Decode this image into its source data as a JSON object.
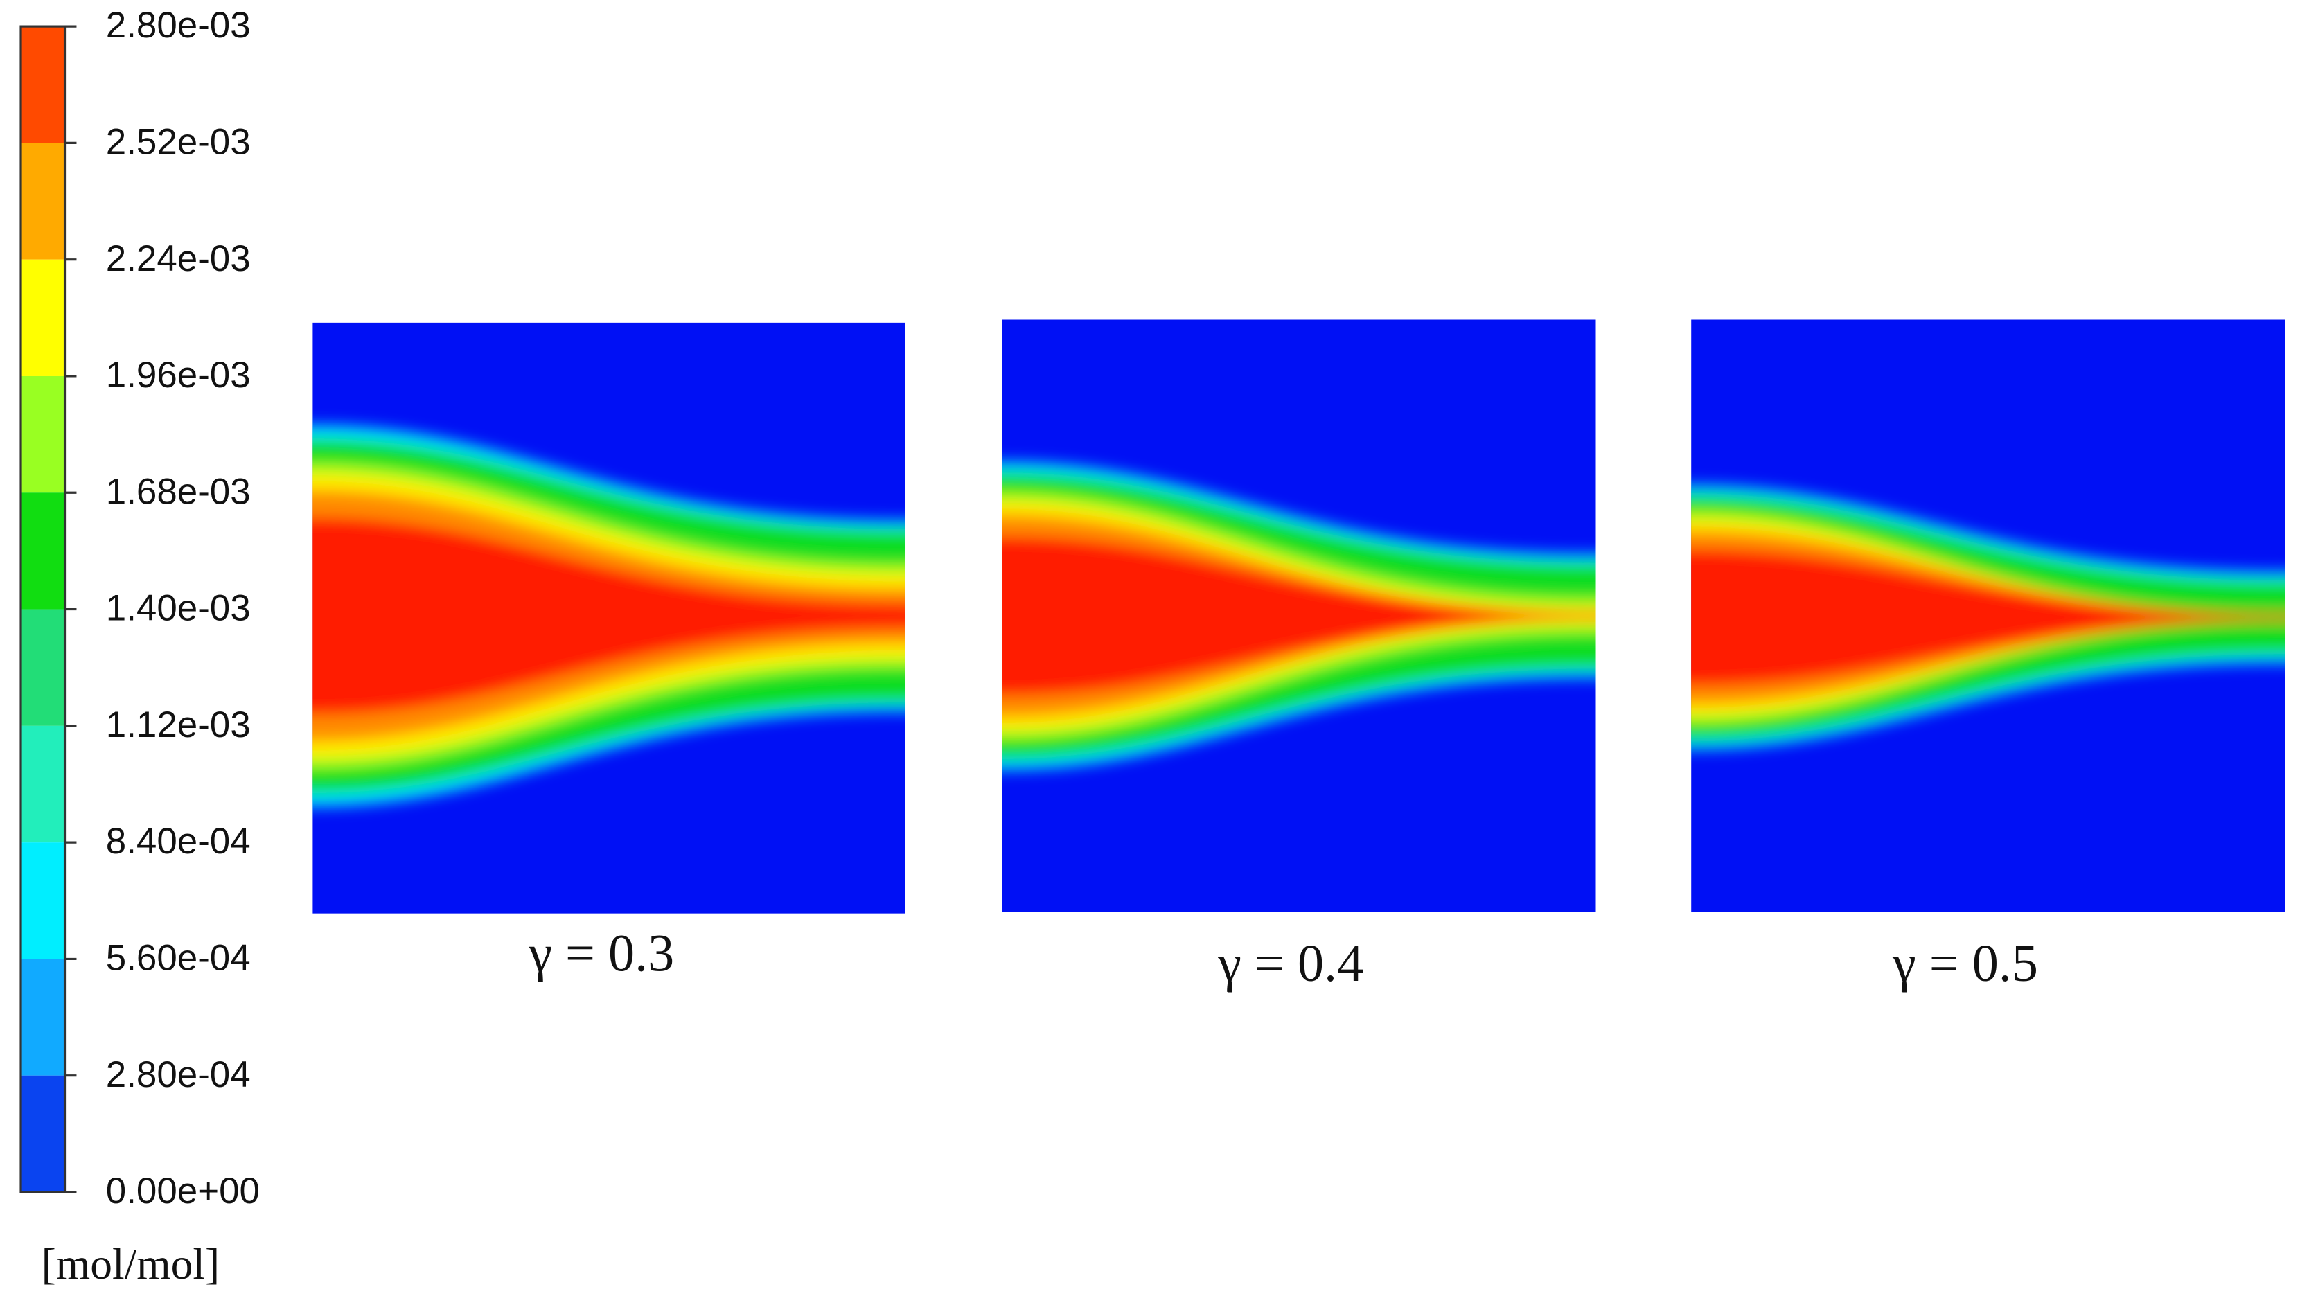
{
  "colorbar": {
    "labels": [
      "2.80e-03",
      "2.52e-03",
      "2.24e-03",
      "1.96e-03",
      "1.68e-03",
      "1.40e-03",
      "1.12e-03",
      "8.40e-04",
      "5.60e-04",
      "2.80e-04",
      "0.00e+00"
    ],
    "unit": "[mol/mol]"
  },
  "panels": [
    {
      "caption": "γ = 0.3"
    },
    {
      "caption": "γ = 0.4"
    },
    {
      "caption": "γ = 0.5"
    }
  ]
}
